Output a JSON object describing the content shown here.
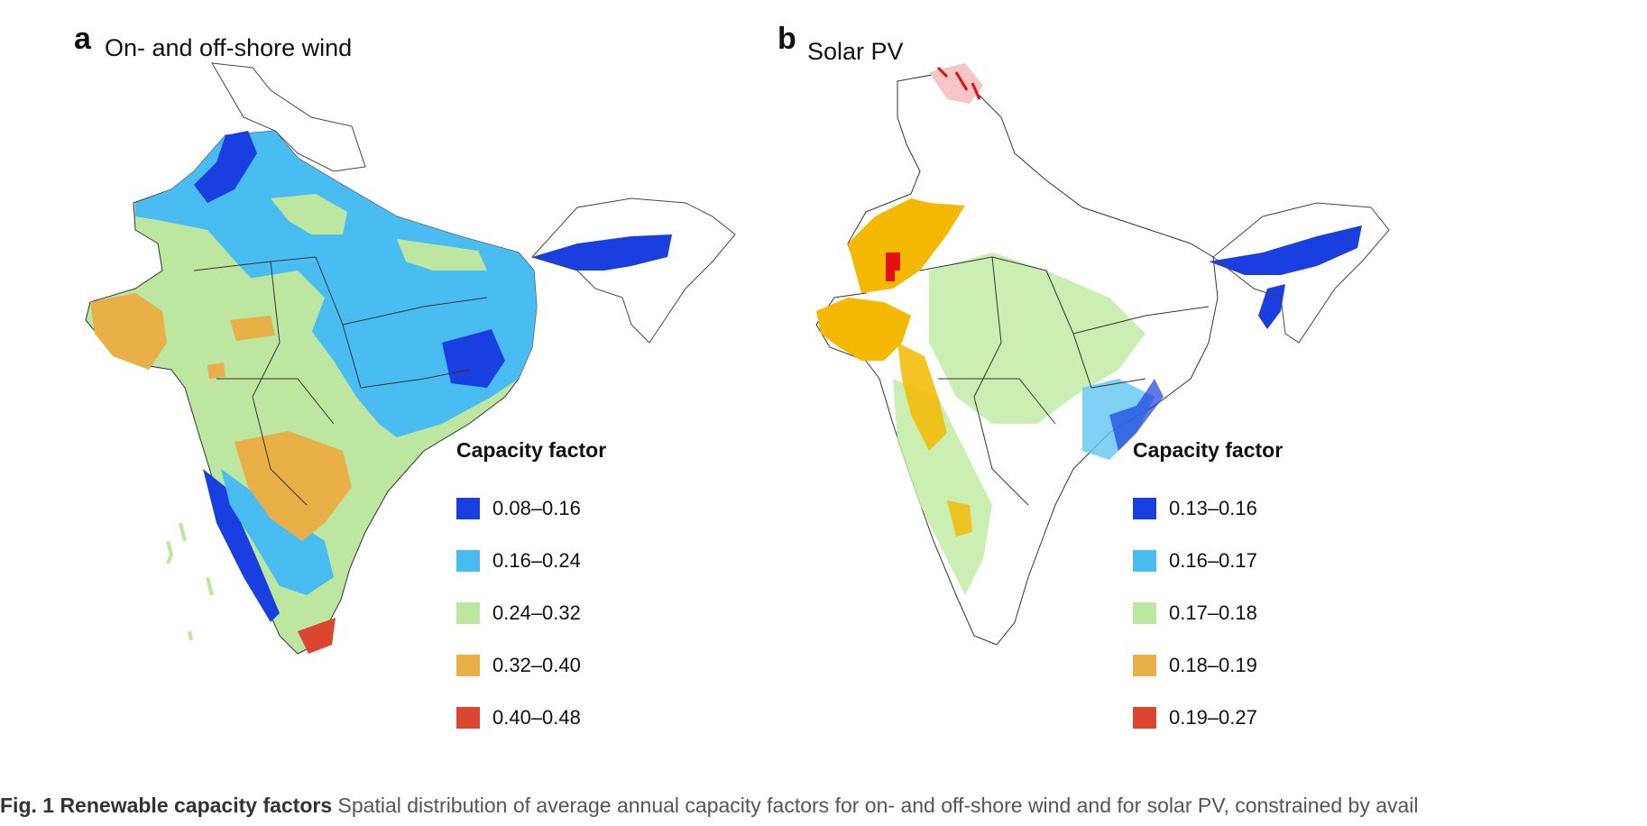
{
  "panel_a": {
    "letter": "a",
    "title": "On- and off-shore wind",
    "legend": {
      "title": "Capacity factor",
      "items": [
        {
          "label": "0.08–0.16",
          "color": "#1a3fe0"
        },
        {
          "label": "0.16–0.24",
          "color": "#49bdf2"
        },
        {
          "label": "0.24–0.32",
          "color": "#bde6a0"
        },
        {
          "label": "0.32–0.40",
          "color": "#e9b048"
        },
        {
          "label": "0.40–0.48",
          "color": "#dc4630"
        }
      ]
    }
  },
  "panel_b": {
    "letter": "b",
    "title": "Solar PV",
    "legend": {
      "title": "Capacity factor",
      "items": [
        {
          "label": "0.13–0.16",
          "color": "#1a3fe0"
        },
        {
          "label": "0.16–0.17",
          "color": "#49bdf2"
        },
        {
          "label": "0.17–0.18",
          "color": "#bde6a0"
        },
        {
          "label": "0.18–0.19",
          "color": "#e9b048"
        },
        {
          "label": "0.19–0.27",
          "color": "#dc4630"
        }
      ]
    }
  },
  "caption": {
    "bold": "Fig. 1 Renewable capacity factors",
    "text": " Spatial distribution of average annual capacity factors for on- and off-shore wind and for solar PV, constrained by avail"
  }
}
